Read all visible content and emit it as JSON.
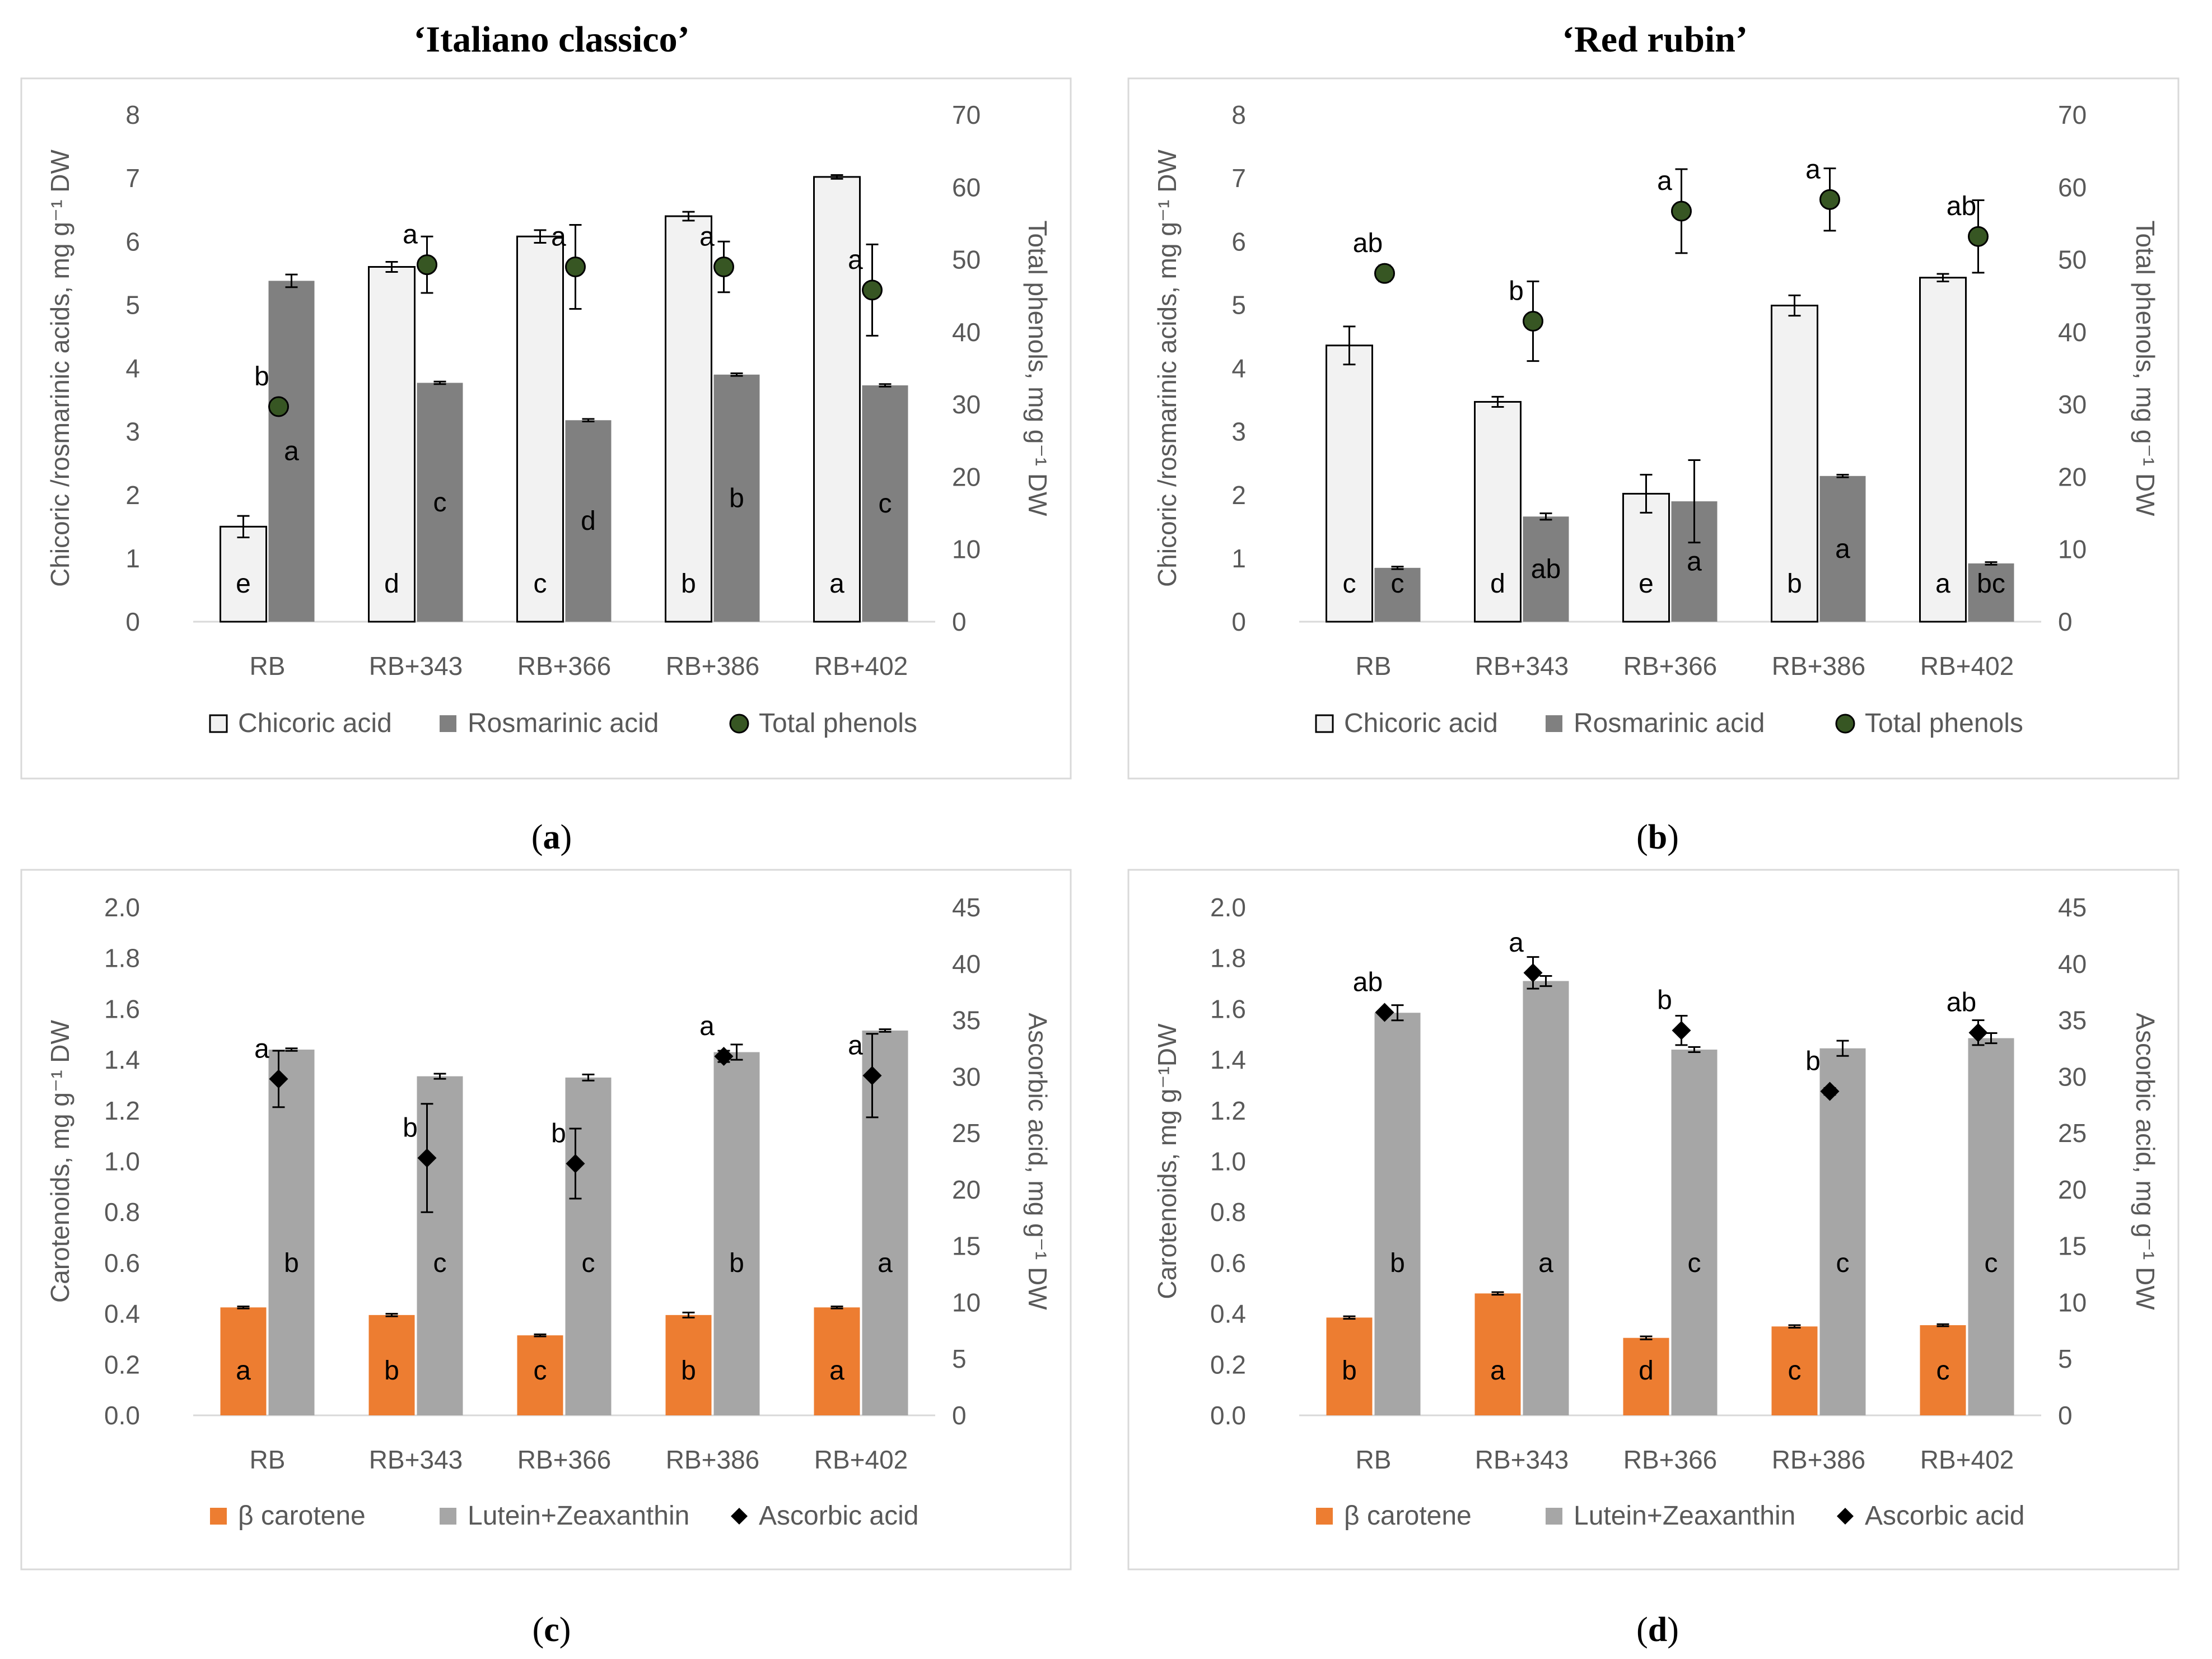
{
  "figure": {
    "titles": [
      "‘Italiano classico’",
      "‘Red rubin’"
    ],
    "captions": [
      "a",
      "b",
      "c",
      "d"
    ]
  },
  "colors": {
    "chicoric": "#f2f2f2",
    "chicoric_edge": "#000000",
    "rosmarinic": "#808080",
    "phenols": "#375623",
    "beta": "#ed7d31",
    "lutein": "#a6a6a6",
    "ascorbic": "#000000",
    "frame": "#d9d9d9",
    "text": "#595959"
  },
  "chart_data": [
    {
      "id": "a",
      "type": "bar",
      "title": "‘Italiano classico’",
      "categories": [
        "RB",
        "RB+343",
        "RB+366",
        "RB+386",
        "RB+402"
      ],
      "ylabel": "Chicoric /rosmarinic acids, mg g⁻¹ DW",
      "ylabel2": "Total phenols, mg g⁻¹ DW",
      "ylim": [
        0,
        8
      ],
      "y2lim": [
        0,
        70
      ],
      "yticks": [
        "0",
        "1",
        "2",
        "3",
        "4",
        "5",
        "6",
        "7",
        "8"
      ],
      "y2ticks": [
        "0",
        "10",
        "20",
        "30",
        "40",
        "50",
        "60",
        "70"
      ],
      "series": [
        {
          "name": "Chicoric acid",
          "kind": "bar",
          "color_key": "chicoric",
          "values": [
            1.5,
            5.6,
            6.08,
            6.4,
            7.02
          ],
          "errors": [
            0.17,
            0.08,
            0.1,
            0.07,
            0.03
          ],
          "letters": [
            "e",
            "d",
            "c",
            "b",
            "a"
          ]
        },
        {
          "name": "Rosmarinic acid",
          "kind": "bar",
          "color_key": "rosmarinic",
          "values": [
            5.38,
            3.77,
            3.18,
            3.9,
            3.73
          ],
          "errors": [
            0.1,
            0.02,
            0.02,
            0.02,
            0.02
          ],
          "letters": [
            "a",
            "c",
            "d",
            "b",
            "c"
          ]
        },
        {
          "name": "Total phenols",
          "kind": "marker",
          "marker": "circle",
          "axis": "y2",
          "color_key": "phenols",
          "values": [
            29.7,
            49.3,
            49.0,
            49.0,
            45.8
          ],
          "errors": [
            0.8,
            3.9,
            5.8,
            3.5,
            6.3
          ],
          "letters": [
            "b",
            "a",
            "a",
            "a",
            "a"
          ]
        }
      ],
      "legend": [
        "Chicoric acid",
        "Rosmarinic acid",
        "Total phenols"
      ]
    },
    {
      "id": "b",
      "type": "bar",
      "title": "‘Red rubin’",
      "categories": [
        "RB",
        "RB+343",
        "RB+366",
        "RB+386",
        "RB+402"
      ],
      "ylabel": "Chicoric /rosmarinic acids, mg g⁻¹ DW",
      "ylabel2": "Total phenols, mg g⁻¹ DW",
      "ylim": [
        0,
        8
      ],
      "y2lim": [
        0,
        70
      ],
      "yticks": [
        "0",
        "1",
        "2",
        "3",
        "4",
        "5",
        "6",
        "7",
        "8"
      ],
      "y2ticks": [
        "0",
        "10",
        "20",
        "30",
        "40",
        "50",
        "60",
        "70"
      ],
      "series": [
        {
          "name": "Chicoric acid",
          "kind": "bar",
          "color_key": "chicoric",
          "values": [
            4.36,
            3.47,
            2.02,
            4.99,
            5.43
          ],
          "errors": [
            0.3,
            0.08,
            0.3,
            0.16,
            0.06
          ],
          "letters": [
            "c",
            "d",
            "e",
            "b",
            "a"
          ]
        },
        {
          "name": "Rosmarinic acid",
          "kind": "bar",
          "color_key": "rosmarinic",
          "values": [
            0.85,
            1.66,
            1.9,
            2.3,
            0.92
          ],
          "errors": [
            0.02,
            0.05,
            0.65,
            0.02,
            0.02
          ],
          "letters": [
            "c",
            "ab",
            "a",
            "a",
            "bc"
          ]
        },
        {
          "name": "Total phenols",
          "kind": "marker",
          "marker": "circle",
          "axis": "y2",
          "color_key": "phenols",
          "values": [
            48.1,
            41.5,
            56.7,
            58.3,
            53.2
          ],
          "errors": [
            1.1,
            5.5,
            5.8,
            4.3,
            5.0
          ],
          "letters": [
            "ab",
            "b",
            "a",
            "a",
            "ab"
          ]
        }
      ],
      "legend": [
        "Chicoric acid",
        "Rosmarinic acid",
        "Total phenols"
      ]
    },
    {
      "id": "c",
      "type": "bar",
      "title": "",
      "categories": [
        "RB",
        "RB+343",
        "RB+366",
        "RB+386",
        "RB+402"
      ],
      "ylabel": "Carotenoids, mg g⁻¹ DW",
      "ylabel2": "Ascorbic acid, mg g⁻¹ DW",
      "ylim": [
        0,
        2
      ],
      "y2lim": [
        0,
        45
      ],
      "yticks": [
        "0.0",
        "0.2",
        "0.4",
        "0.6",
        "0.8",
        "1.0",
        "1.2",
        "1.4",
        "1.6",
        "1.8",
        "2.0"
      ],
      "y2ticks": [
        "0",
        "5",
        "10",
        "15",
        "20",
        "25",
        "30",
        "35",
        "40",
        "45"
      ],
      "series": [
        {
          "name": "β carotene",
          "kind": "bar",
          "color_key": "beta",
          "values": [
            0.425,
            0.395,
            0.315,
            0.395,
            0.425
          ],
          "errors": [
            0.004,
            0.005,
            0.004,
            0.01,
            0.004
          ],
          "letters": [
            "a",
            "b",
            "c",
            "b",
            "a"
          ]
        },
        {
          "name": "Lutein+Zeaxanthin",
          "kind": "bar",
          "color_key": "lutein",
          "values": [
            1.44,
            1.335,
            1.33,
            1.43,
            1.515
          ],
          "errors": [
            0.005,
            0.01,
            0.012,
            0.03,
            0.005
          ],
          "letters": [
            "b",
            "c",
            "c",
            "b",
            "a"
          ]
        },
        {
          "name": "Ascorbic acid",
          "kind": "marker",
          "marker": "diamond",
          "axis": "y2",
          "color_key": "ascorbic",
          "values": [
            29.8,
            22.8,
            22.3,
            31.8,
            30.1
          ],
          "errors": [
            2.5,
            4.8,
            3.1,
            0.5,
            3.7
          ],
          "letters": [
            "a",
            "b",
            "b",
            "a",
            "a"
          ]
        }
      ],
      "legend": [
        "β carotene",
        "Lutein+Zeaxanthin",
        "Ascorbic acid"
      ]
    },
    {
      "id": "d",
      "type": "bar",
      "title": "",
      "categories": [
        "RB",
        "RB+343",
        "RB+366",
        "RB+386",
        "RB+402"
      ],
      "ylabel": "Carotenoids, mg g⁻¹DW",
      "ylabel2": "Ascorbic acid, mg g⁻¹ DW",
      "ylim": [
        0,
        2
      ],
      "y2lim": [
        0,
        45
      ],
      "yticks": [
        "0.0",
        "0.2",
        "0.4",
        "0.6",
        "0.8",
        "1.0",
        "1.2",
        "1.4",
        "1.6",
        "1.8",
        "2.0"
      ],
      "y2ticks": [
        "0",
        "5",
        "10",
        "15",
        "20",
        "25",
        "30",
        "35",
        "40",
        "45"
      ],
      "series": [
        {
          "name": "β carotene",
          "kind": "bar",
          "color_key": "beta",
          "values": [
            0.385,
            0.48,
            0.305,
            0.35,
            0.355
          ],
          "errors": [
            0.005,
            0.005,
            0.006,
            0.005,
            0.004
          ],
          "letters": [
            "b",
            "a",
            "d",
            "c",
            "c"
          ]
        },
        {
          "name": "Lutein+Zeaxanthin",
          "kind": "bar",
          "color_key": "lutein",
          "values": [
            1.585,
            1.71,
            1.44,
            1.445,
            1.485
          ],
          "errors": [
            0.03,
            0.02,
            0.01,
            0.03,
            0.02
          ],
          "letters": [
            "b",
            "a",
            "c",
            "c",
            "c"
          ]
        },
        {
          "name": "Ascorbic acid",
          "kind": "marker",
          "marker": "diamond",
          "axis": "y2",
          "color_key": "ascorbic",
          "values": [
            35.7,
            39.2,
            34.1,
            28.7,
            33.9
          ],
          "errors": [
            0.2,
            1.4,
            1.3,
            0.3,
            1.1
          ],
          "letters": [
            "ab",
            "a",
            "b",
            "b",
            "ab"
          ]
        }
      ],
      "legend": [
        "β carotene",
        "Lutein+Zeaxanthin",
        "Ascorbic acid"
      ]
    }
  ]
}
